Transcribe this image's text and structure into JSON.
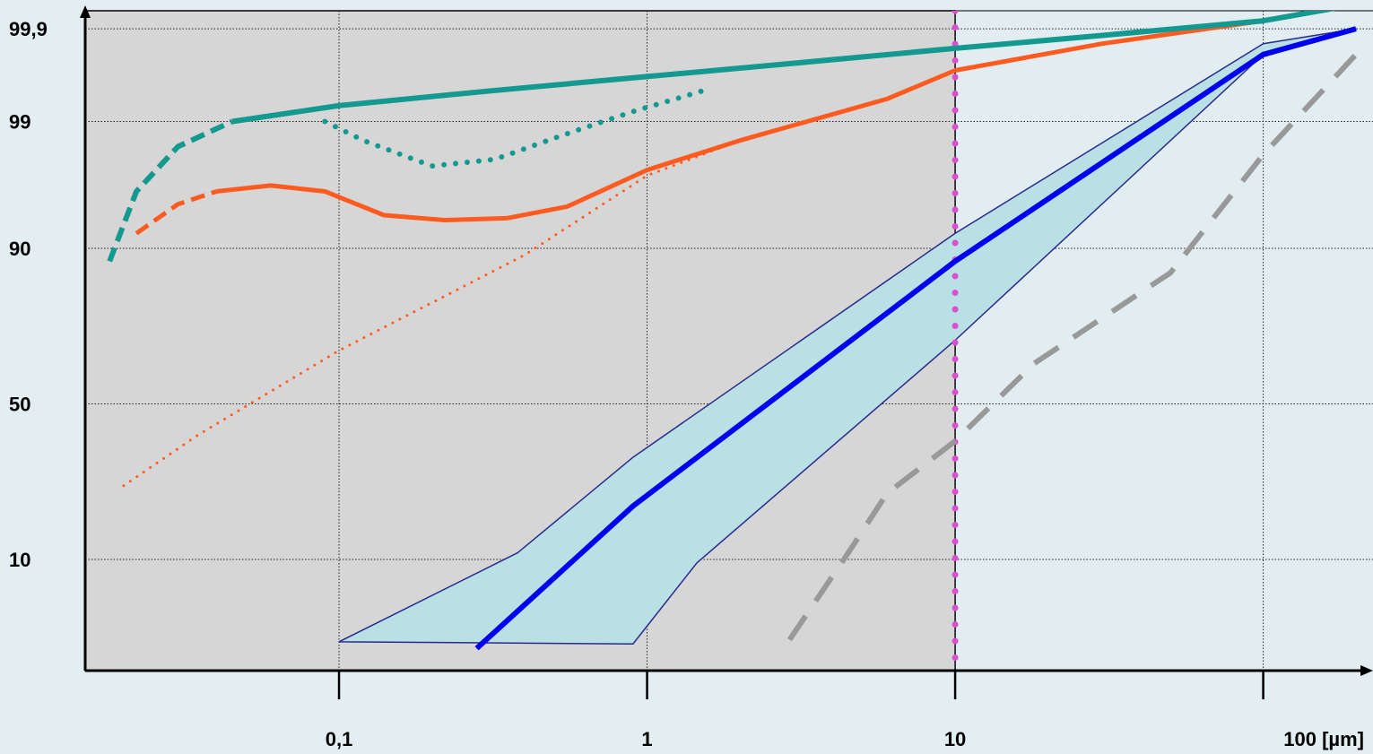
{
  "colors": {
    "page_background": "#e3eef2",
    "shaded_region": "#d6d6d6",
    "unshaded_region": "#e1edf1",
    "band_fill": "#b9e0e4",
    "band_outline": "#2a2a8c",
    "median_line": "#0000ee",
    "orange": "#ff5a1f",
    "teal": "#13998f",
    "gray": "#999999",
    "magenta": "#d94fd0"
  },
  "chart_data": {
    "type": "line",
    "title": "",
    "xlabel": "",
    "ylabel": "",
    "x_scale": "log",
    "y_scale": "probability",
    "xlim": [
      0.015,
      200
    ],
    "ylim": [
      1.4,
      99.94
    ],
    "x_ticks": [
      0.1,
      1,
      10,
      100
    ],
    "x_tick_labels": [
      "0,1",
      "1",
      "10",
      "100 [µm]"
    ],
    "y_ticks": [
      99.9,
      99,
      90,
      50,
      10
    ],
    "y_tick_labels": [
      "99,9",
      "99",
      "90",
      "50",
      "10"
    ],
    "grid": true,
    "shaded_region": {
      "x": [
        0.015,
        10
      ]
    },
    "vertical_marker": {
      "x": 10,
      "style": "dotted"
    },
    "band": {
      "upper": [
        [
          0.1,
          2.5
        ],
        [
          0.38,
          11
        ],
        [
          0.9,
          33
        ],
        [
          10,
          92
        ],
        [
          100,
          99.85
        ],
        [
          200,
          99.9
        ]
      ],
      "lower": [
        [
          0.9,
          2.4
        ],
        [
          1.45,
          9.5
        ],
        [
          10,
          70
        ],
        [
          100,
          99.8
        ],
        [
          200,
          99.9
        ]
      ]
    },
    "series": [
      {
        "color": "#0000ee",
        "style": "solid",
        "width": 6,
        "points": [
          [
            0.28,
            2.2
          ],
          [
            0.9,
            20
          ],
          [
            10,
            88
          ],
          [
            100,
            99.8
          ],
          [
            200,
            99.9
          ]
        ]
      },
      {
        "color": "#ff5a1f",
        "style": "dashed",
        "width": 5,
        "points": [
          [
            0.022,
            92
          ],
          [
            0.03,
            95
          ],
          [
            0.04,
            96
          ]
        ]
      },
      {
        "color": "#ff5a1f",
        "style": "solid",
        "width": 5,
        "points": [
          [
            0.04,
            96
          ],
          [
            0.06,
            96.4
          ],
          [
            0.09,
            96
          ],
          [
            0.14,
            94
          ],
          [
            0.22,
            93.5
          ],
          [
            0.35,
            93.7
          ],
          [
            0.55,
            94.8
          ],
          [
            1,
            97.3
          ],
          [
            2,
            98.5
          ],
          [
            6,
            99.4
          ],
          [
            10,
            99.7
          ],
          [
            30,
            99.85
          ],
          [
            100,
            99.92
          ],
          [
            200,
            99.95
          ]
        ]
      },
      {
        "color": "#ff5a1f",
        "style": "dotted",
        "width": 3,
        "points": [
          [
            0.02,
            25
          ],
          [
            0.035,
            40
          ],
          [
            0.1,
            67
          ],
          [
            0.4,
            89
          ],
          [
            1,
            97
          ],
          [
            2,
            98.5
          ]
        ]
      },
      {
        "color": "#13998f",
        "style": "dashed",
        "width": 6,
        "points": [
          [
            0.018,
            88
          ],
          [
            0.022,
            96
          ],
          [
            0.03,
            98.3
          ],
          [
            0.045,
            99
          ]
        ]
      },
      {
        "color": "#13998f",
        "style": "solid",
        "width": 6,
        "points": [
          [
            0.045,
            99
          ],
          [
            0.1,
            99.3
          ],
          [
            0.3,
            99.5
          ],
          [
            1,
            99.65
          ],
          [
            3,
            99.75
          ],
          [
            10,
            99.83
          ],
          [
            30,
            99.88
          ],
          [
            100,
            99.92
          ],
          [
            200,
            99.95
          ]
        ]
      },
      {
        "color": "#13998f",
        "style": "dotted",
        "width": 6,
        "points": [
          [
            0.09,
            99
          ],
          [
            0.12,
            98.5
          ],
          [
            0.2,
            97.5
          ],
          [
            0.32,
            97.8
          ],
          [
            0.55,
            98.7
          ],
          [
            0.9,
            99.2
          ],
          [
            1.5,
            99.5
          ]
        ]
      },
      {
        "color": "#999999",
        "style": "dashed",
        "width": 6,
        "points": [
          [
            2.9,
            2.6
          ],
          [
            4.5,
            11
          ],
          [
            6,
            23
          ],
          [
            10,
            38
          ],
          [
            18,
            63
          ],
          [
            50,
            86
          ],
          [
            100,
            98
          ],
          [
            200,
            99.8
          ]
        ]
      }
    ]
  }
}
